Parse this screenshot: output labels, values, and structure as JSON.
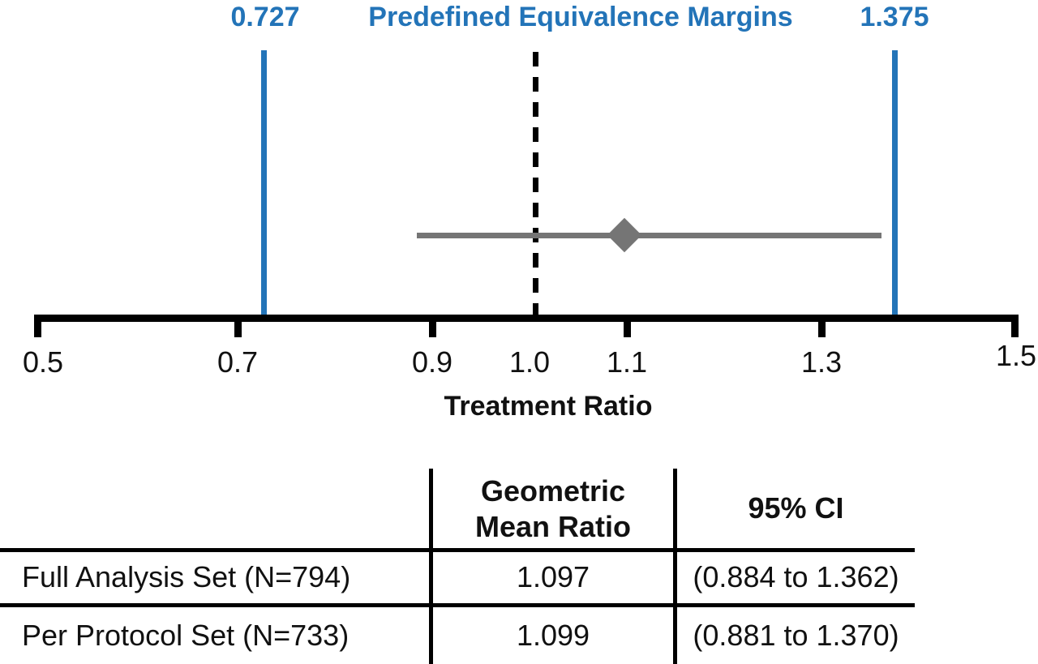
{
  "chart_data": {
    "type": "scatter",
    "subtype": "equivalence-forest-plot",
    "title": {
      "left_margin": "0.727",
      "text": "Predefined Equivalence Margins",
      "right_margin": "1.375"
    },
    "xlabel": "Treatment Ratio",
    "x_ticks": [
      "0.5",
      "0.7",
      "0.9",
      "1.0",
      "1.1",
      "1.3",
      "1.5"
    ],
    "xlim": [
      0.5,
      1.5
    ],
    "equivalence_margins": {
      "lower": 0.727,
      "upper": 1.375
    },
    "reference_line": 1.0,
    "series": [
      {
        "name": "Full Analysis Set (N=794)",
        "point_estimate": 1.097,
        "ci_lower": 0.884,
        "ci_upper": 1.362,
        "marker": "diamond"
      }
    ],
    "colors": {
      "margin_line_blue": "#2374b8",
      "ci_gray": "#757575",
      "reference_black": "#000000"
    },
    "grid": false,
    "legend": false
  },
  "table": {
    "header": {
      "gmr_line1": "Geometric",
      "gmr_line2": "Mean Ratio",
      "ci": "95% CI"
    },
    "rows": [
      {
        "label": "Full Analysis Set (N=794)",
        "gmr": "1.097",
        "ci": "(0.884 to 1.362)"
      },
      {
        "label": "Per Protocol Set (N=733)",
        "gmr": "1.099",
        "ci": "(0.881 to 1.370)"
      }
    ]
  }
}
